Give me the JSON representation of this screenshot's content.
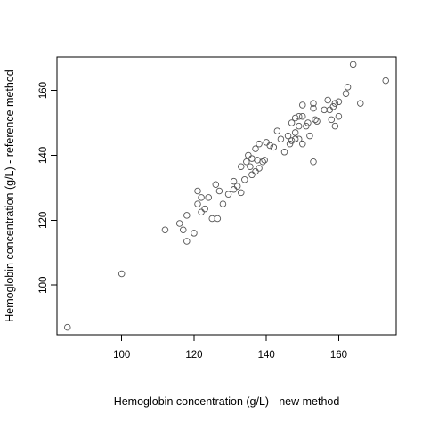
{
  "chart_data": {
    "type": "scatter",
    "title": "",
    "xlabel": "Hemoglobin concentration (g/L) - new method",
    "ylabel": "Hemoglobin concentration (g/L) - reference method",
    "xlim": [
      82.1,
      175.9
    ],
    "ylim": [
      84.7,
      170.3
    ],
    "xticks": [
      100,
      120,
      140,
      160
    ],
    "yticks": [
      100,
      120,
      140,
      160
    ],
    "xtick_labels": [
      "100",
      "120",
      "140",
      "160"
    ],
    "ytick_labels": [
      "100",
      "120",
      "140",
      "160"
    ],
    "grid": false,
    "legend": "none",
    "marker": "open-circle",
    "points": [
      [
        85,
        87
      ],
      [
        100,
        103.5
      ],
      [
        112,
        117
      ],
      [
        116,
        119
      ],
      [
        117,
        117
      ],
      [
        118,
        113.5
      ],
      [
        118,
        121.5
      ],
      [
        120,
        116
      ],
      [
        121,
        125
      ],
      [
        121,
        129
      ],
      [
        122,
        127
      ],
      [
        122,
        122.5
      ],
      [
        123,
        123.5
      ],
      [
        124,
        127
      ],
      [
        125,
        120.5
      ],
      [
        126,
        131
      ],
      [
        126.5,
        120.5
      ],
      [
        127,
        129
      ],
      [
        128,
        125
      ],
      [
        129.5,
        128
      ],
      [
        131,
        129.5
      ],
      [
        131,
        132
      ],
      [
        132,
        130.5
      ],
      [
        133,
        128.5
      ],
      [
        133,
        136.5
      ],
      [
        134,
        132.5
      ],
      [
        134.5,
        138
      ],
      [
        135,
        140
      ],
      [
        135.5,
        136.5
      ],
      [
        136,
        134
      ],
      [
        136,
        139
      ],
      [
        137,
        135
      ],
      [
        137.5,
        138.5
      ],
      [
        137,
        142
      ],
      [
        138,
        143.5
      ],
      [
        138,
        136
      ],
      [
        139,
        138
      ],
      [
        139.5,
        138.5
      ],
      [
        140,
        144
      ],
      [
        141,
        143
      ],
      [
        142,
        142.5
      ],
      [
        143,
        147.5
      ],
      [
        144,
        145
      ],
      [
        145,
        141
      ],
      [
        146,
        146
      ],
      [
        146.5,
        143.5
      ],
      [
        147,
        144.5
      ],
      [
        147,
        150
      ],
      [
        148,
        151.5
      ],
      [
        148,
        147
      ],
      [
        148,
        145
      ],
      [
        149,
        152
      ],
      [
        149,
        145
      ],
      [
        149,
        149
      ],
      [
        150,
        155.5
      ],
      [
        150,
        152
      ],
      [
        150,
        143.5
      ],
      [
        151,
        149
      ],
      [
        151.5,
        150
      ],
      [
        152,
        146
      ],
      [
        153,
        154.5
      ],
      [
        153,
        156
      ],
      [
        153,
        138
      ],
      [
        153.5,
        151
      ],
      [
        154,
        150.5
      ],
      [
        156,
        154
      ],
      [
        157,
        157
      ],
      [
        157.5,
        154
      ],
      [
        158,
        151
      ],
      [
        158.5,
        155
      ],
      [
        159,
        156
      ],
      [
        159,
        149
      ],
      [
        160,
        156.5
      ],
      [
        160,
        152
      ],
      [
        162,
        159
      ],
      [
        162.5,
        161
      ],
      [
        164,
        168
      ],
      [
        166,
        156
      ],
      [
        173,
        163
      ]
    ]
  }
}
